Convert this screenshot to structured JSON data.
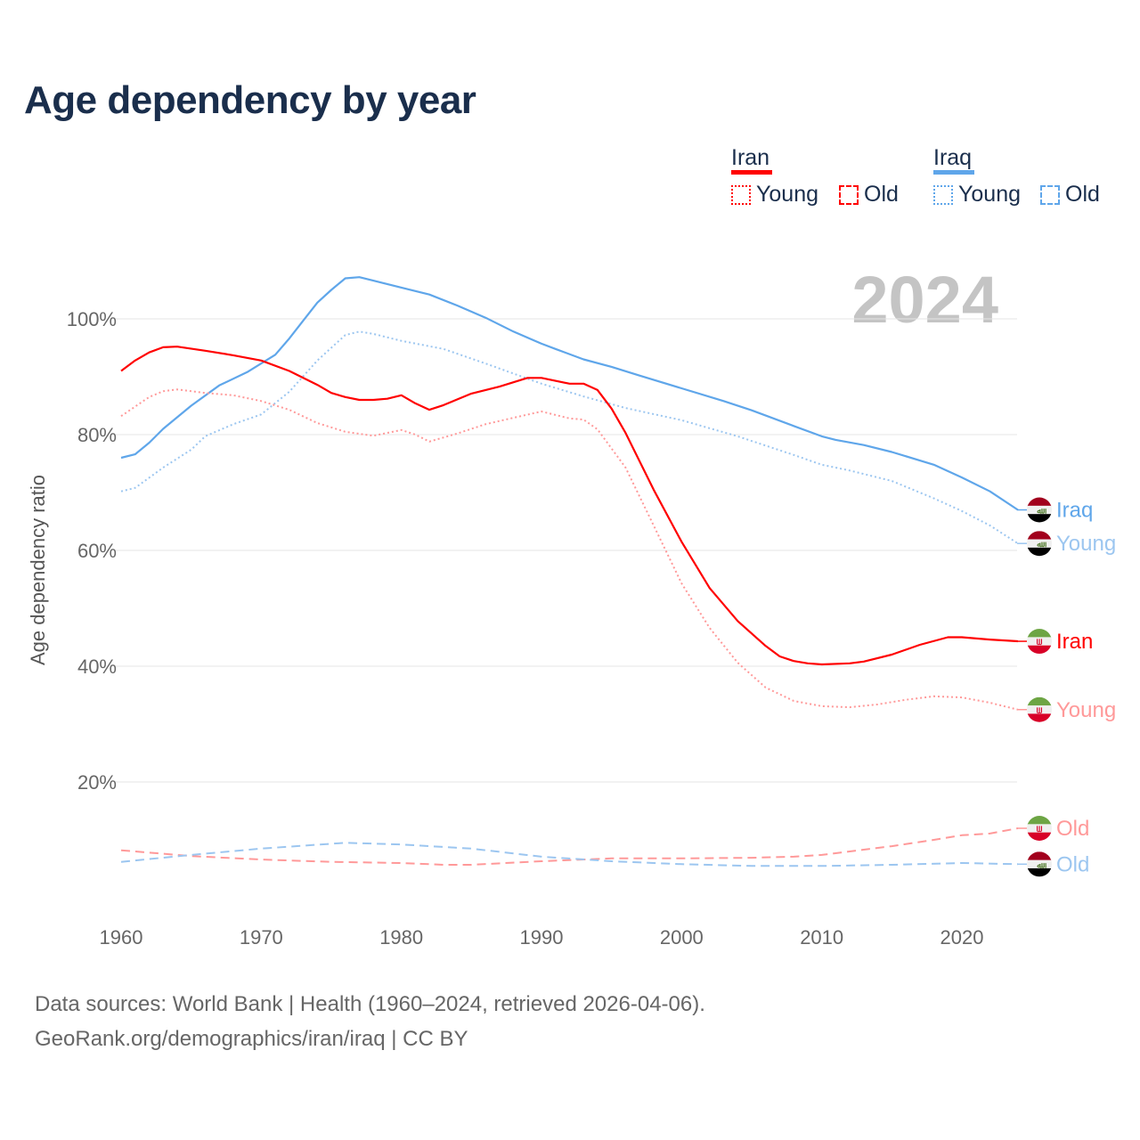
{
  "chart_data": {
    "type": "line",
    "title": "Age dependency by year",
    "ylabel": "Age dependency ratio",
    "xlabel": "",
    "year_watermark": "2024",
    "xlim": [
      1960,
      2024
    ],
    "ylim": [
      0,
      110
    ],
    "x_ticks": [
      1960,
      1970,
      1980,
      1990,
      2000,
      2010,
      2020
    ],
    "x_tick_labels": [
      "1960",
      "1970",
      "1980",
      "1990",
      "2000",
      "2010",
      "2020"
    ],
    "y_ticks": [
      20,
      40,
      60,
      80,
      100
    ],
    "y_tick_labels": [
      "20%",
      "40%",
      "60%",
      "80%",
      "100%"
    ],
    "grid": true,
    "legend": {
      "placement": "top-right",
      "groups": [
        {
          "country": "Iran",
          "color": "#ff0000",
          "items": [
            "Young",
            "Old"
          ]
        },
        {
          "country": "Iraq",
          "color": "#5fa6ea",
          "items": [
            "Young",
            "Old"
          ]
        }
      ]
    },
    "series": [
      {
        "name": "Iraq",
        "end_label": "Iraq",
        "flag": "iraq",
        "country": "Iraq",
        "kind": "total",
        "color": "#5fa6ea",
        "x": [
          1960,
          1961,
          1962,
          1963,
          1965,
          1967,
          1969,
          1971,
          1972,
          1973,
          1974,
          1975,
          1976,
          1977,
          1978,
          1980,
          1982,
          1984,
          1986,
          1988,
          1990,
          1991,
          1993,
          1995,
          1997,
          2000,
          2003,
          2005,
          2008,
          2010,
          2011,
          2013,
          2015,
          2018,
          2020,
          2022,
          2024
        ],
        "y": [
          76,
          76.6,
          78.6,
          81,
          85,
          88.5,
          90.8,
          93.8,
          96.6,
          99.7,
          102.8,
          105,
          107,
          107.2,
          106.6,
          105.4,
          104.2,
          102.3,
          100.2,
          97.8,
          95.7,
          94.8,
          93,
          91.7,
          90.2,
          88,
          85.8,
          84.2,
          81.5,
          79.7,
          79.1,
          78.2,
          77,
          74.8,
          72.6,
          70.2,
          67
        ]
      },
      {
        "name": "Iraq Young",
        "end_label": "Young",
        "flag": "iraq",
        "country": "Iraq",
        "kind": "young",
        "color": "#9cc6f0",
        "x": [
          1960,
          1961,
          1963,
          1965,
          1966,
          1968,
          1970,
          1972,
          1974,
          1975,
          1976,
          1977,
          1978,
          1980,
          1983,
          1986,
          1990,
          1993,
          1996,
          2000,
          2004,
          2008,
          2010,
          2012,
          2015,
          2018,
          2020,
          2022,
          2024
        ],
        "y": [
          70.2,
          70.8,
          74.3,
          77.4,
          79.7,
          81.8,
          83.5,
          87.4,
          92.8,
          95,
          97.2,
          97.8,
          97.4,
          96.2,
          94.8,
          92.3,
          88.8,
          86.6,
          84.6,
          82.5,
          79.7,
          76.5,
          74.8,
          73.8,
          72,
          69,
          66.8,
          64.3,
          61.2
        ]
      },
      {
        "name": "Iran",
        "end_label": "Iran",
        "flag": "iran",
        "country": "Iran",
        "kind": "total",
        "color": "#ff0000",
        "x": [
          1960,
          1961,
          1962,
          1963,
          1964,
          1966,
          1968,
          1970,
          1972,
          1974,
          1975,
          1976,
          1977,
          1978,
          1979,
          1980,
          1981,
          1982,
          1983,
          1985,
          1987,
          1989,
          1990,
          1992,
          1993,
          1994,
          1995,
          1996,
          1998,
          2000,
          2002,
          2004,
          2006,
          2007,
          2008,
          2009,
          2010,
          2012,
          2013,
          2015,
          2017,
          2019,
          2020,
          2022,
          2024
        ],
        "y": [
          91,
          92.8,
          94.2,
          95.1,
          95.2,
          94.5,
          93.7,
          92.8,
          91,
          88.6,
          87.2,
          86.5,
          86,
          86,
          86.2,
          86.8,
          85.4,
          84.3,
          85.1,
          87.1,
          88.3,
          89.8,
          89.8,
          88.8,
          88.8,
          87.7,
          84.5,
          80.3,
          70.5,
          61.5,
          53.5,
          47.8,
          43.5,
          41.7,
          40.9,
          40.5,
          40.3,
          40.5,
          40.8,
          42,
          43.7,
          45,
          45,
          44.6,
          44.3
        ]
      },
      {
        "name": "Iran Young",
        "end_label": "Young",
        "flag": "iran",
        "country": "Iran",
        "kind": "young",
        "color": "#ff9999",
        "x": [
          1960,
          1962,
          1963,
          1964,
          1966,
          1968,
          1970,
          1972,
          1974,
          1976,
          1978,
          1980,
          1981,
          1982,
          1984,
          1986,
          1988,
          1990,
          1992,
          1993,
          1994,
          1996,
          1998,
          2000,
          2002,
          2004,
          2006,
          2008,
          2010,
          2012,
          2014,
          2016,
          2018,
          2020,
          2022,
          2024
        ],
        "y": [
          83.2,
          86.5,
          87.5,
          87.8,
          87.2,
          86.8,
          85.8,
          84.3,
          82,
          80.5,
          79.8,
          80.8,
          80,
          78.8,
          80.2,
          81.8,
          82.9,
          84,
          82.8,
          82.6,
          80.9,
          74.3,
          64.3,
          54.3,
          46.6,
          40.6,
          36.3,
          34,
          33.1,
          32.9,
          33.4,
          34.2,
          34.8,
          34.6,
          33.7,
          32.5
        ]
      },
      {
        "name": "Iran Old",
        "end_label": "Old",
        "flag": "iran",
        "country": "Iran",
        "kind": "old",
        "color": "#ff9999",
        "x": [
          1960,
          1965,
          1970,
          1975,
          1980,
          1983,
          1985,
          1990,
          1995,
          2000,
          2005,
          2008,
          2010,
          2015,
          2018,
          2020,
          2022,
          2024
        ],
        "y": [
          8.2,
          7.2,
          6.6,
          6.2,
          6,
          5.7,
          5.7,
          6.3,
          6.8,
          6.8,
          6.9,
          7.1,
          7.4,
          8.9,
          10,
          10.8,
          11.1,
          12
        ]
      },
      {
        "name": "Iraq Old",
        "end_label": "Old",
        "flag": "iraq",
        "country": "Iraq",
        "kind": "old",
        "color": "#9cc6f0",
        "x": [
          1960,
          1965,
          1970,
          1976,
          1980,
          1985,
          1990,
          1995,
          2000,
          2005,
          2010,
          2015,
          2020,
          2024
        ],
        "y": [
          6.2,
          7.4,
          8.5,
          9.5,
          9.2,
          8.5,
          7.1,
          6.3,
          5.8,
          5.5,
          5.5,
          5.7,
          6,
          5.8
        ]
      }
    ]
  },
  "footer": {
    "line1": "Data sources: World Bank | Health (1960–2024, retrieved 2026-04-06).",
    "line2": "GeoRank.org/demographics/iran/iraq | CC BY"
  }
}
